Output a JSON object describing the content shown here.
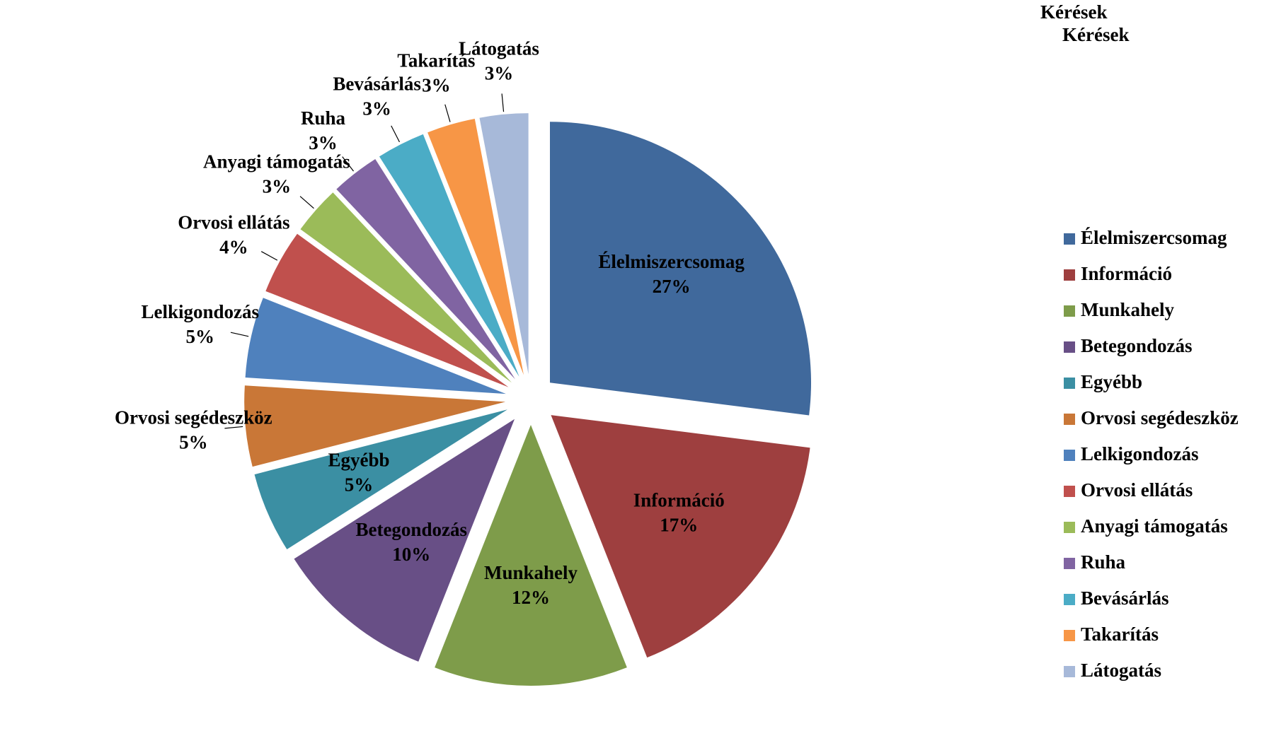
{
  "chart_data": {
    "type": "pie",
    "title": "Kérések",
    "subtitle": "Kérések",
    "categories": [
      "Élelmiszercsomag",
      "Információ",
      "Munkahely",
      "Betegondozás",
      "Egyébb",
      "Orvosi segédeszköz",
      "Lelkigondozás",
      "Orvosi ellátás",
      "Anyagi támogatás",
      "Ruha",
      "Bevásárlás",
      "Takarítás",
      "Látogatás"
    ],
    "values": [
      27,
      17,
      12,
      10,
      5,
      5,
      5,
      4,
      3,
      3,
      3,
      3,
      3
    ],
    "value_labels": [
      "27%",
      "17%",
      "12%",
      "10%",
      "5%",
      "5%",
      "5%",
      "4%",
      "3%",
      "3%",
      "3%",
      "3%",
      "3%"
    ],
    "colors": [
      "#40699c",
      "#9e3f3f",
      "#7e9c4a",
      "#684f86",
      "#3b8fa3",
      "#c97737",
      "#4f81bd",
      "#c0504d",
      "#9bbb59",
      "#8064a2",
      "#4bacc6",
      "#f79646",
      "#a7b9d9"
    ],
    "legend": "right"
  }
}
